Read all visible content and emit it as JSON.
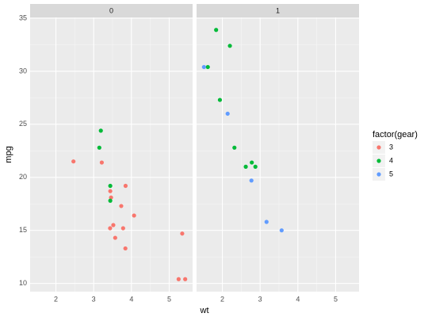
{
  "chart_data": {
    "type": "scatter",
    "x_label": "wt",
    "y_label": "mpg",
    "legend_title": "factor(gear)",
    "series": [
      {
        "name": "3",
        "color": "#F8766D"
      },
      {
        "name": "4",
        "color": "#00BA38"
      },
      {
        "name": "5",
        "color": "#619CFF"
      }
    ],
    "xlim": [
      1.317,
      5.62
    ],
    "xticks": [
      2,
      3,
      4,
      5
    ],
    "ylim": [
      9.225,
      35.075
    ],
    "yticks": [
      10,
      15,
      20,
      25,
      30,
      35
    ],
    "grid": true,
    "facets": [
      {
        "label": "0",
        "series": [
          {
            "x": [
              3.215,
              3.44,
              3.46,
              3.57,
              4.07,
              3.73,
              3.78,
              5.25,
              5.424,
              5.345,
              2.465,
              3.52,
              3.435,
              3.84,
              3.845
            ],
            "values": [
              21.4,
              18.7,
              18.1,
              14.3,
              16.4,
              17.3,
              15.2,
              10.4,
              10.4,
              14.7,
              21.5,
              15.5,
              15.2,
              13.3,
              19.2
            ]
          },
          {
            "x": [
              3.19,
              3.15,
              3.44,
              3.44
            ],
            "values": [
              24.4,
              22.8,
              19.2,
              17.8
            ]
          },
          {
            "x": [],
            "values": []
          }
        ]
      },
      {
        "label": "1",
        "series": [
          {
            "x": [],
            "values": []
          },
          {
            "x": [
              2.62,
              2.875,
              2.32,
              2.2,
              1.615,
              1.835,
              1.935,
              2.78
            ],
            "values": [
              21.0,
              21.0,
              22.8,
              32.4,
              30.4,
              33.9,
              27.3,
              21.4
            ]
          },
          {
            "x": [
              2.14,
              1.513,
              3.17,
              2.77,
              3.57
            ],
            "values": [
              26.0,
              30.4,
              15.8,
              19.7,
              15.0
            ]
          }
        ]
      }
    ]
  }
}
